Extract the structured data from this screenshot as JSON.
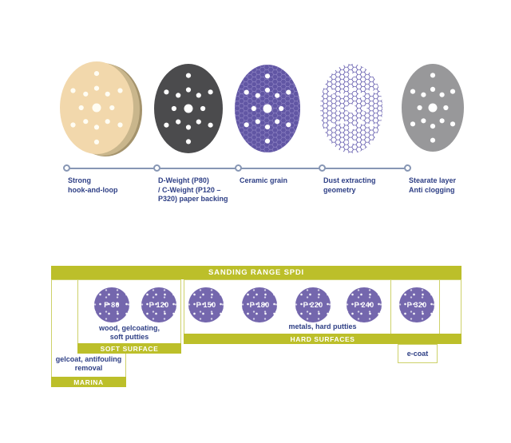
{
  "colors": {
    "navy": "#2e3f85",
    "steel": "#8796b4",
    "lime": "#bcbf2a",
    "lime_border": "#cdd169",
    "purple": "#7467ad",
    "ceramic_purple": "#6156a4",
    "hex_line": "#9186c5",
    "mesh_purple": "#5e56ab",
    "dark_gray": "#4b4b4d",
    "light_gray": "#98989a",
    "tan": "#f2d8ac",
    "tan_side": "#a4936c"
  },
  "layers": {
    "discs": [
      {
        "name": "hook-and-loop-layer"
      },
      {
        "name": "paper-backing-layer"
      },
      {
        "name": "ceramic-grain-layer"
      },
      {
        "name": "dust-extracting-geometry-layer"
      },
      {
        "name": "stearate-layer"
      }
    ],
    "callouts": [
      {
        "lines": [
          "Strong",
          "hook-and-loop"
        ]
      },
      {
        "lines": [
          "D-Weight (P80)",
          "/ C-Weight (P120 –",
          "P320) paper backing"
        ]
      },
      {
        "lines": [
          "Ceramic grain"
        ]
      },
      {
        "lines": [
          "Dust extracting",
          "geometry"
        ]
      },
      {
        "lines": [
          "Stearate layer",
          "Anti clogging"
        ]
      }
    ]
  },
  "range": {
    "title": "SANDING RANGE SPDI",
    "discs": [
      {
        "grit": "P 80"
      },
      {
        "grit": "P 120"
      },
      {
        "grit": "P 150"
      },
      {
        "grit": "P 180"
      },
      {
        "grit": "P 220"
      },
      {
        "grit": "P 240"
      },
      {
        "grit": "P 320"
      }
    ],
    "soft": {
      "desc_lines": [
        "wood, gelcoating,",
        "soft putties"
      ],
      "label": "SOFT SURFACE"
    },
    "hard": {
      "desc": "metals, hard putties",
      "label": "HARD SURFACES"
    },
    "marina": {
      "desc_lines": [
        "gelcoat, antifouling",
        "removal"
      ],
      "label": "MARINA"
    },
    "ecoat": {
      "label": "e-coat"
    }
  }
}
